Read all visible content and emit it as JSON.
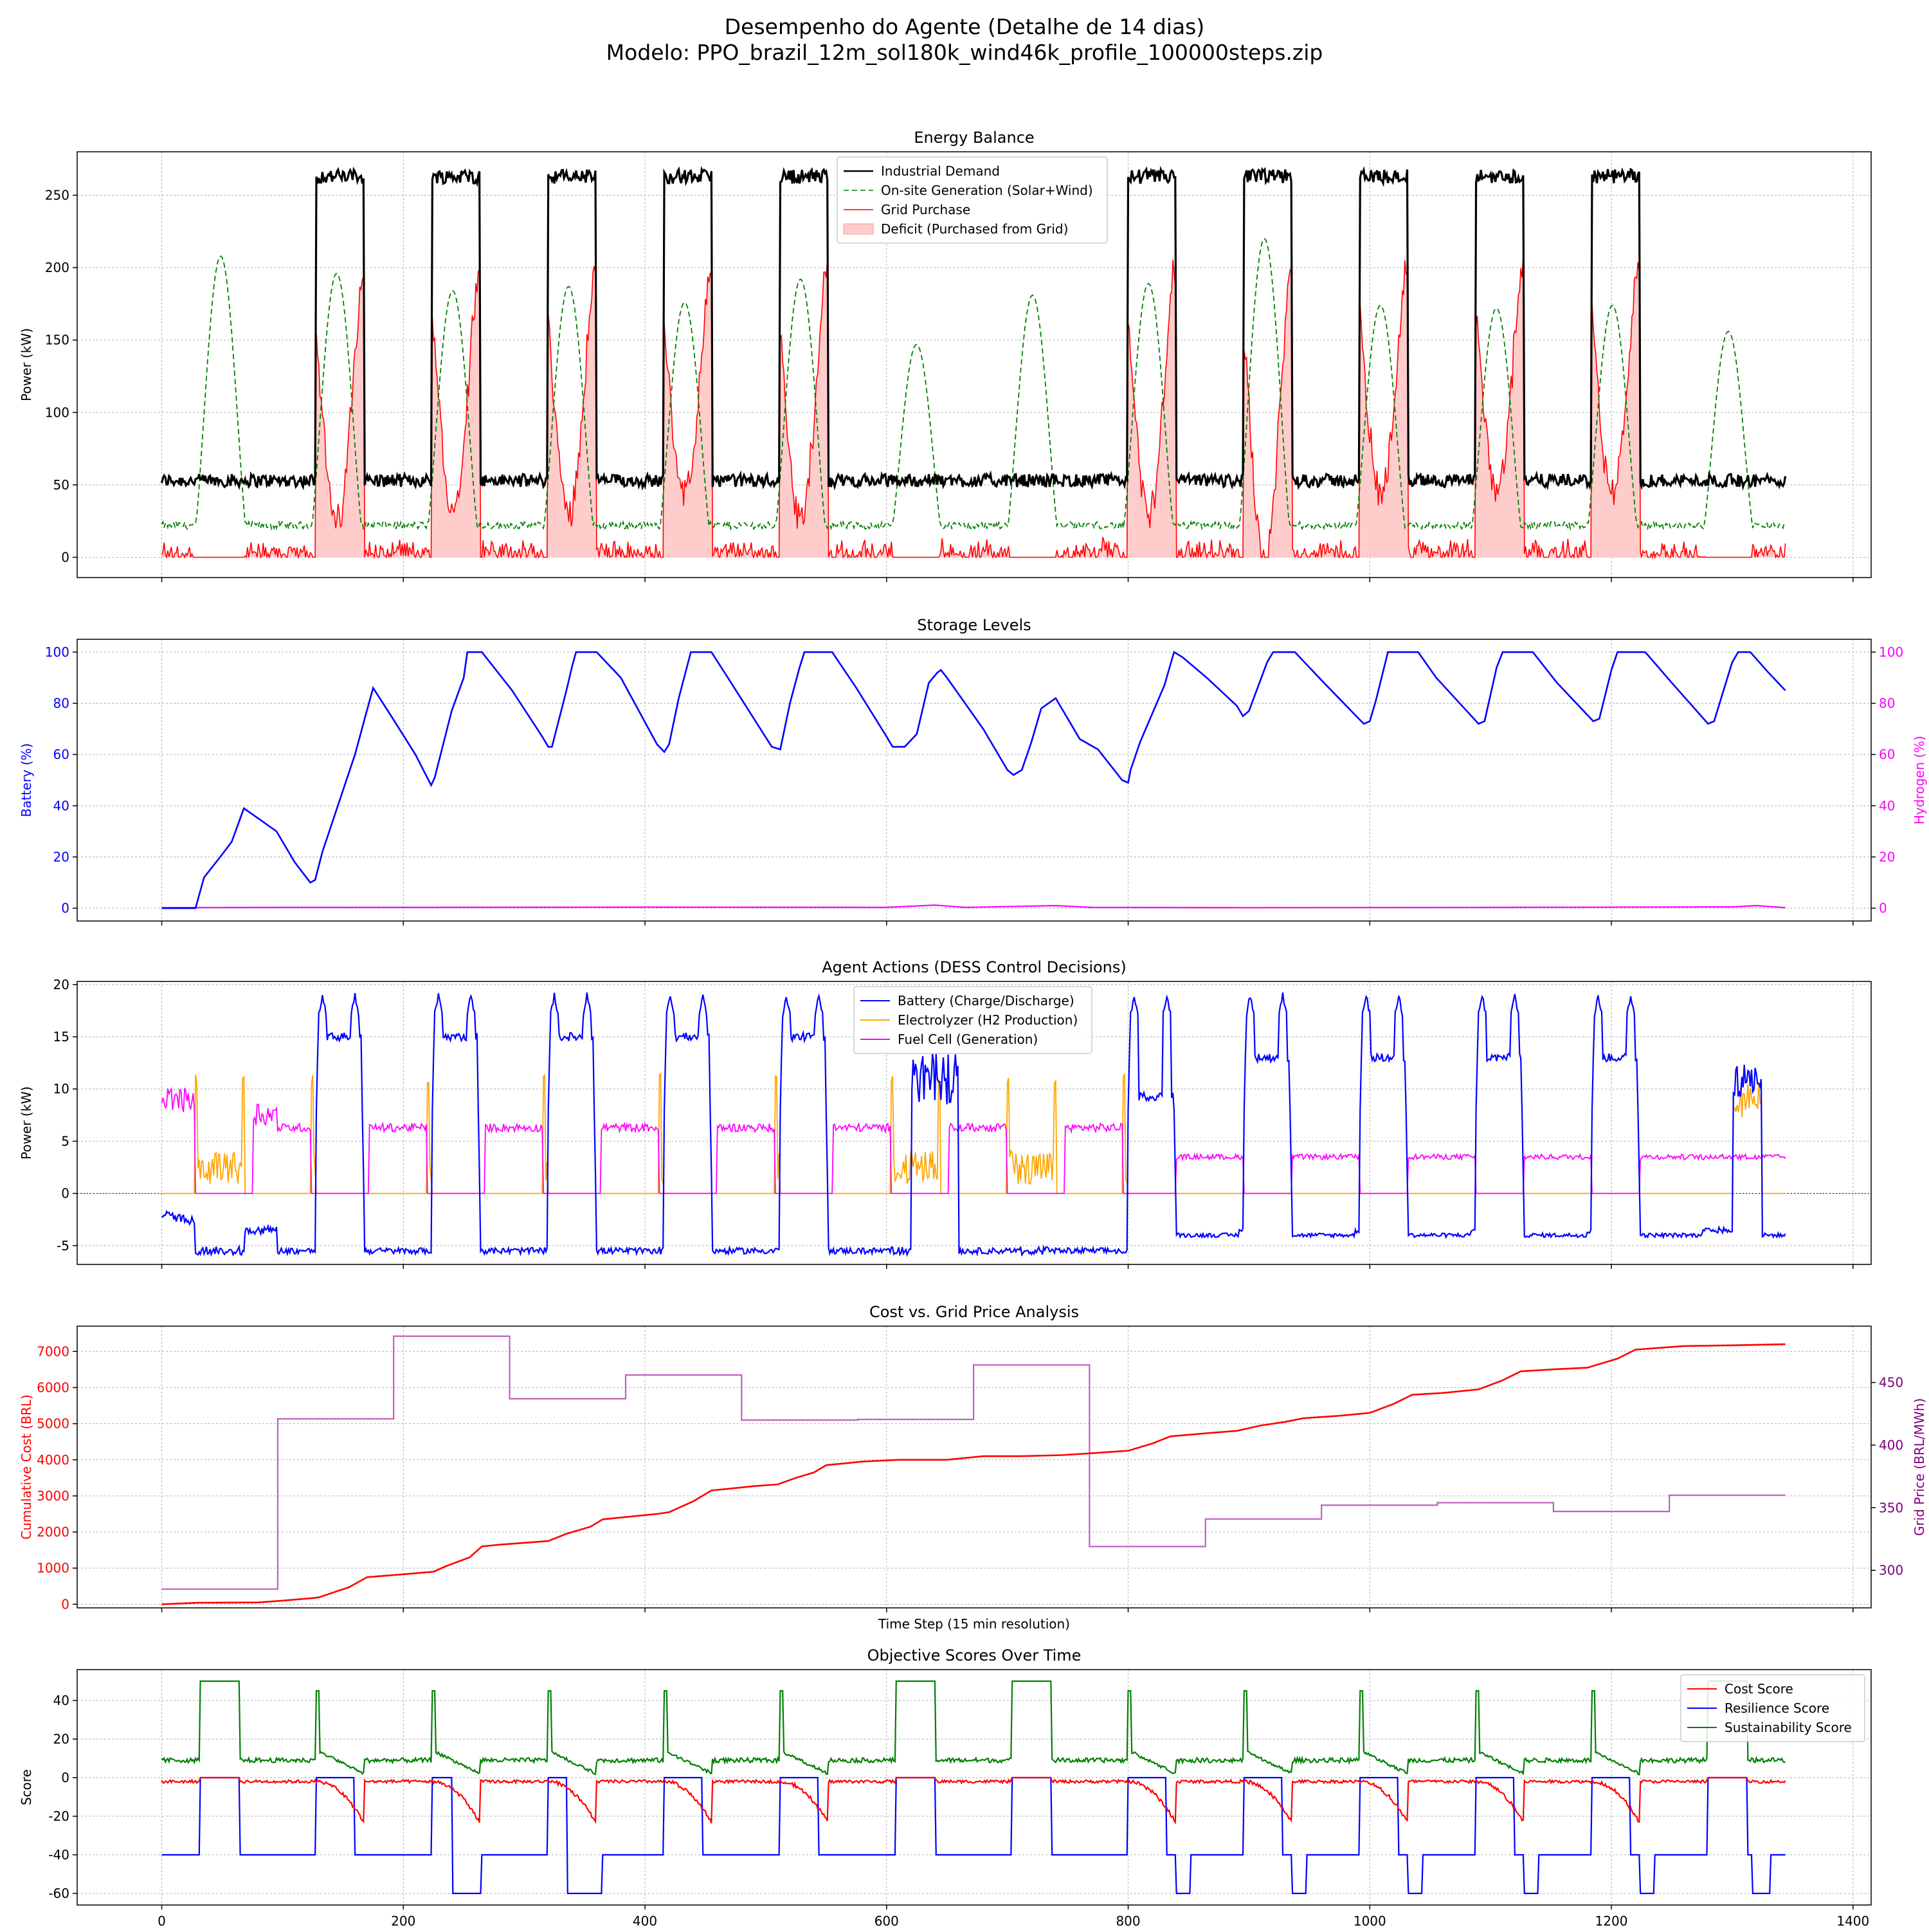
{
  "figure": {
    "suptitle_line1": "Desempenho do Agente (Detalhe de 14 dias)",
    "suptitle_line2": "Modelo: PPO_brazil_12m_sol180k_wind46k_profile_100000steps.zip"
  },
  "chart_data": [
    {
      "id": "energy",
      "type": "line",
      "title": "Energy Balance",
      "xlabel": "",
      "ylabel": "Power (kW)",
      "xlim": [
        -70,
        1415
      ],
      "ylim": [
        -14,
        280
      ],
      "xticks": [
        0,
        200,
        400,
        600,
        800,
        1000,
        1200,
        1400
      ],
      "show_xticklabels": false,
      "yticks": [
        0,
        50,
        100,
        150,
        200,
        250
      ],
      "grid": true,
      "legend": "top-center",
      "x_step_start": 0,
      "x_step_end": 1344,
      "work_day_windows": [
        [
          128,
          168
        ],
        [
          224,
          264
        ],
        [
          320,
          360
        ],
        [
          416,
          456
        ],
        [
          512,
          552
        ],
        [
          800,
          840
        ],
        [
          896,
          936
        ],
        [
          992,
          1032
        ],
        [
          1088,
          1128
        ],
        [
          1184,
          1224
        ]
      ],
      "series": [
        {
          "name": "Industrial Demand",
          "color": "#000000",
          "style": "solid",
          "width": 2.5,
          "description_levels": {
            "base": 53,
            "peak": 263
          }
        },
        {
          "name": "On-site Generation (Solar+Wind)",
          "color": "#008000",
          "style": "dashed",
          "width": 1.6,
          "daily_peaks": [
            193,
            181,
            169,
            172,
            161,
            177,
            132,
            166,
            174,
            205,
            159,
            157,
            159,
            141
          ],
          "night_level": 22
        },
        {
          "name": "Grid Purchase",
          "color": "#ff0000",
          "style": "solid",
          "width": 1.6
        },
        {
          "name": "Deficit (Purchased from Grid)",
          "color": "#ffcccc",
          "style": "fill"
        }
      ]
    },
    {
      "id": "storage",
      "type": "line",
      "title": "Storage Levels",
      "xlabel": "",
      "ylabel": "Battery (%)",
      "ylabel_right": "Hydrogen (%)",
      "xlim": [
        -70,
        1415
      ],
      "ylim": [
        -5,
        105
      ],
      "ylim_right": [
        -5,
        105
      ],
      "xticks": [
        0,
        200,
        400,
        600,
        800,
        1000,
        1200,
        1400
      ],
      "show_xticklabels": false,
      "yticks": [
        0,
        20,
        40,
        60,
        80,
        100
      ],
      "grid": true,
      "series": [
        {
          "name": "Battery",
          "color": "#0000ff",
          "axis": "left",
          "points": [
            [
              0,
              0
            ],
            [
              28,
              0
            ],
            [
              35,
              12
            ],
            [
              50,
              21
            ],
            [
              58,
              26
            ],
            [
              68,
              39
            ],
            [
              80,
              35
            ],
            [
              95,
              30
            ],
            [
              110,
              18
            ],
            [
              123,
              10
            ],
            [
              127,
              11
            ],
            [
              133,
              22
            ],
            [
              160,
              60
            ],
            [
              168,
              74
            ],
            [
              175,
              86
            ],
            [
              190,
              75
            ],
            [
              210,
              60
            ],
            [
              223,
              48
            ],
            [
              226,
              51
            ],
            [
              240,
              77
            ],
            [
              250,
              90
            ],
            [
              253,
              100
            ],
            [
              265,
              100
            ],
            [
              290,
              85
            ],
            [
              315,
              67
            ],
            [
              320,
              63
            ],
            [
              323,
              63
            ],
            [
              335,
              85
            ],
            [
              340,
              95
            ],
            [
              343,
              100
            ],
            [
              360,
              100
            ],
            [
              380,
              90
            ],
            [
              410,
              64
            ],
            [
              416,
              61
            ],
            [
              420,
              64
            ],
            [
              428,
              82
            ],
            [
              438,
              100
            ],
            [
              455,
              100
            ],
            [
              470,
              89
            ],
            [
              505,
              63
            ],
            [
              512,
              62
            ],
            [
              520,
              80
            ],
            [
              528,
              94
            ],
            [
              532,
              100
            ],
            [
              555,
              100
            ],
            [
              575,
              86
            ],
            [
              600,
              67
            ],
            [
              605,
              63
            ],
            [
              615,
              63
            ],
            [
              625,
              68
            ],
            [
              635,
              88
            ],
            [
              642,
              92
            ],
            [
              645,
              93
            ],
            [
              650,
              90
            ],
            [
              680,
              70
            ],
            [
              700,
              54
            ],
            [
              705,
              52
            ],
            [
              712,
              54
            ],
            [
              720,
              65
            ],
            [
              728,
              78
            ],
            [
              740,
              82
            ],
            [
              760,
              66
            ],
            [
              775,
              62
            ],
            [
              795,
              50
            ],
            [
              800,
              49
            ],
            [
              802,
              54
            ],
            [
              810,
              65
            ],
            [
              830,
              87
            ],
            [
              838,
              100
            ],
            [
              845,
              98
            ],
            [
              865,
              90
            ],
            [
              890,
              79
            ],
            [
              895,
              75
            ],
            [
              900,
              77
            ],
            [
              915,
              96
            ],
            [
              920,
              100
            ],
            [
              938,
              100
            ],
            [
              960,
              89
            ],
            [
              995,
              72
            ],
            [
              1000,
              73
            ],
            [
              1005,
              81
            ],
            [
              1015,
              100
            ],
            [
              1040,
              100
            ],
            [
              1055,
              90
            ],
            [
              1090,
              72
            ],
            [
              1095,
              73
            ],
            [
              1105,
              94
            ],
            [
              1110,
              100
            ],
            [
              1135,
              100
            ],
            [
              1155,
              88
            ],
            [
              1185,
              73
            ],
            [
              1190,
              74
            ],
            [
              1200,
              93
            ],
            [
              1205,
              100
            ],
            [
              1228,
              100
            ],
            [
              1250,
              88
            ],
            [
              1280,
              72
            ],
            [
              1285,
              73
            ],
            [
              1300,
              96
            ],
            [
              1305,
              100
            ],
            [
              1315,
              100
            ],
            [
              1330,
              92
            ],
            [
              1344,
              85
            ]
          ]
        },
        {
          "name": "Hydrogen",
          "color": "#ff00ff",
          "axis": "right",
          "points": [
            [
              0,
              0.2
            ],
            [
              100,
              0.3
            ],
            [
              200,
              0.3
            ],
            [
              400,
              0.4
            ],
            [
              600,
              0.3
            ],
            [
              640,
              1.2
            ],
            [
              665,
              0.3
            ],
            [
              740,
              1.0
            ],
            [
              770,
              0.3
            ],
            [
              900,
              0.2
            ],
            [
              1100,
              0.3
            ],
            [
              1300,
              0.5
            ],
            [
              1320,
              1.0
            ],
            [
              1344,
              0.2
            ]
          ]
        }
      ]
    },
    {
      "id": "actions",
      "type": "line",
      "title": "Agent Actions (DESS Control Decisions)",
      "xlabel": "",
      "ylabel": "Power (kW)",
      "xlim": [
        -70,
        1415
      ],
      "ylim": [
        -6.8,
        20.3
      ],
      "xticks": [
        0,
        200,
        400,
        600,
        800,
        1000,
        1200,
        1400
      ],
      "show_xticklabels": false,
      "yticks": [
        -5,
        0,
        5,
        10,
        15,
        20
      ],
      "grid": true,
      "zero_line": true,
      "legend": "top-center",
      "series": [
        {
          "name": "Battery (Charge/Discharge)",
          "color": "#0000ff"
        },
        {
          "name": "Electrolyzer (H2 Production)",
          "color": "#ffa500"
        },
        {
          "name": "Fuel Cell (Generation)",
          "color": "#ff00ff"
        }
      ]
    },
    {
      "id": "cost",
      "type": "line",
      "title": "Cost vs. Grid Price Analysis",
      "xlabel": "Time Step (15 min resolution)",
      "ylabel": "Cumulative Cost (BRL)",
      "ylabel_right": "Grid Price (BRL/MWh)",
      "xlim": [
        -70,
        1415
      ],
      "ylim": [
        -100,
        7700
      ],
      "ylim_right": [
        270,
        495
      ],
      "xticks": [
        0,
        200,
        400,
        600,
        800,
        1000,
        1200,
        1400
      ],
      "show_xticklabels": false,
      "yticks": [
        0,
        1000,
        2000,
        3000,
        4000,
        5000,
        6000,
        7000
      ],
      "yticks_right": [
        300,
        350,
        400,
        450
      ],
      "grid": true,
      "series": [
        {
          "name": "Cumulative Cost",
          "color": "#ff0000",
          "axis": "left",
          "points": [
            [
              0,
              0
            ],
            [
              30,
              40
            ],
            [
              80,
              50
            ],
            [
              100,
              100
            ],
            [
              125,
              170
            ],
            [
              130,
              190
            ],
            [
              145,
              360
            ],
            [
              155,
              470
            ],
            [
              170,
              750
            ],
            [
              200,
              830
            ],
            [
              225,
              900
            ],
            [
              235,
              1050
            ],
            [
              255,
              1300
            ],
            [
              265,
              1600
            ],
            [
              280,
              1650
            ],
            [
              300,
              1700
            ],
            [
              320,
              1750
            ],
            [
              335,
              1950
            ],
            [
              355,
              2150
            ],
            [
              365,
              2350
            ],
            [
              380,
              2400
            ],
            [
              410,
              2500
            ],
            [
              420,
              2550
            ],
            [
              440,
              2850
            ],
            [
              455,
              3150
            ],
            [
              470,
              3200
            ],
            [
              490,
              3270
            ],
            [
              510,
              3320
            ],
            [
              525,
              3500
            ],
            [
              540,
              3650
            ],
            [
              550,
              3850
            ],
            [
              580,
              3950
            ],
            [
              610,
              4000
            ],
            [
              650,
              4000
            ],
            [
              680,
              4100
            ],
            [
              710,
              4100
            ],
            [
              745,
              4130
            ],
            [
              765,
              4170
            ],
            [
              800,
              4250
            ],
            [
              820,
              4450
            ],
            [
              835,
              4650
            ],
            [
              870,
              4750
            ],
            [
              890,
              4800
            ],
            [
              910,
              4950
            ],
            [
              930,
              5050
            ],
            [
              945,
              5150
            ],
            [
              975,
              5220
            ],
            [
              1000,
              5300
            ],
            [
              1020,
              5550
            ],
            [
              1035,
              5800
            ],
            [
              1060,
              5850
            ],
            [
              1090,
              5950
            ],
            [
              1110,
              6200
            ],
            [
              1125,
              6450
            ],
            [
              1150,
              6500
            ],
            [
              1180,
              6550
            ],
            [
              1205,
              6800
            ],
            [
              1220,
              7050
            ],
            [
              1260,
              7150
            ],
            [
              1300,
              7170
            ],
            [
              1344,
              7200
            ]
          ]
        },
        {
          "name": "Grid Price",
          "color": "#bf5fbf",
          "axis": "right",
          "step": true,
          "points": [
            [
              0,
              285
            ],
            [
              96,
              285
            ],
            [
              96,
              421
            ],
            [
              192,
              421
            ],
            [
              192,
              487
            ],
            [
              288,
              487
            ],
            [
              288,
              437
            ],
            [
              384,
              437
            ],
            [
              384,
              456
            ],
            [
              480,
              456
            ],
            [
              480,
              420
            ],
            [
              576,
              420
            ],
            [
              576,
              420.5
            ],
            [
              672,
              420.5
            ],
            [
              672,
              464
            ],
            [
              768,
              464
            ],
            [
              768,
              319
            ],
            [
              864,
              319
            ],
            [
              864,
              341
            ],
            [
              960,
              341
            ],
            [
              960,
              352
            ],
            [
              1056,
              352
            ],
            [
              1056,
              354
            ],
            [
              1152,
              354
            ],
            [
              1152,
              347
            ],
            [
              1248,
              347
            ],
            [
              1248,
              360
            ],
            [
              1344,
              360
            ]
          ]
        }
      ]
    },
    {
      "id": "scores",
      "type": "line",
      "title": "Objective Scores Over Time",
      "xlabel": "Time Step (15 min resolution)",
      "ylabel": "Score",
      "xlim": [
        -70,
        1415
      ],
      "ylim": [
        -66,
        56
      ],
      "xticks": [
        0,
        200,
        400,
        600,
        800,
        1000,
        1200,
        1400
      ],
      "show_xticklabels": true,
      "xticklabels": [
        "0",
        "200",
        "400",
        "600",
        "800",
        "1000",
        "1200",
        "1400"
      ],
      "yticks": [
        -60,
        -40,
        -20,
        0,
        20,
        40
      ],
      "grid": true,
      "legend": "top-right",
      "series": [
        {
          "name": "Cost Score",
          "color": "#ff0000"
        },
        {
          "name": "Resilience Score",
          "color": "#0000ff"
        },
        {
          "name": "Sustainability Score",
          "color": "#008000"
        }
      ]
    }
  ]
}
